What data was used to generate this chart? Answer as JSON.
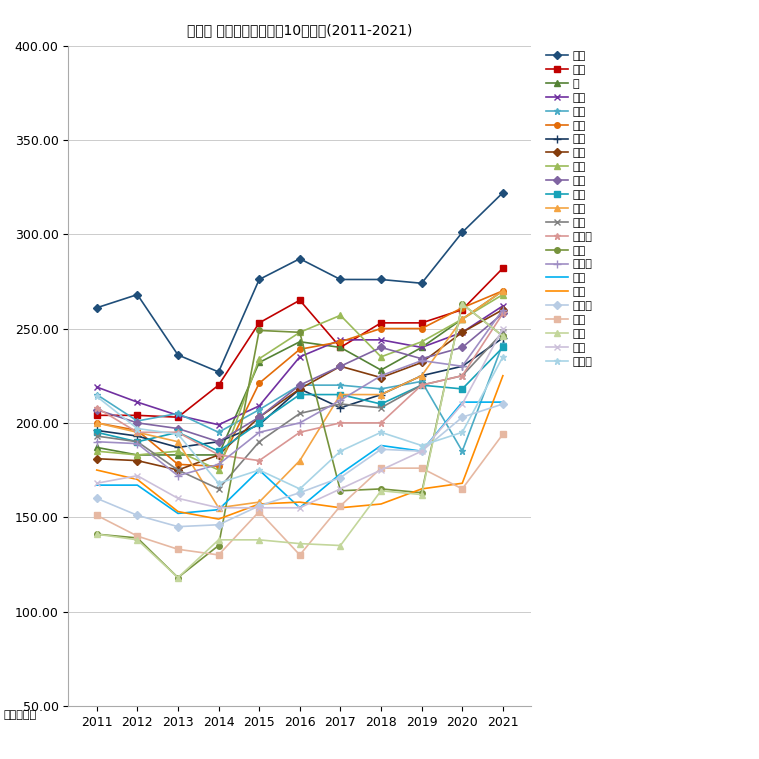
{
  "title": "墨田区 マンション坪単価10年変遷(2011-2021)",
  "xlabel_unit": "単位：万円",
  "years": [
    2011,
    2012,
    2013,
    2014,
    2015,
    2016,
    2017,
    2018,
    2019,
    2020,
    2021
  ],
  "ylim": [
    50.0,
    400.0
  ],
  "yticks": [
    50.0,
    100.0,
    150.0,
    200.0,
    250.0,
    300.0,
    350.0,
    400.0
  ],
  "series": [
    {
      "name": "太平",
      "color": "#1F4E79",
      "marker": "D",
      "values": [
        261,
        268,
        236,
        227,
        276,
        287,
        276,
        276,
        274,
        301,
        322
      ]
    },
    {
      "name": "立川",
      "color": "#C00000",
      "marker": "s",
      "values": [
        204,
        204,
        203,
        220,
        253,
        265,
        240,
        253,
        253,
        260,
        282
      ]
    },
    {
      "name": "緑",
      "color": "#548235",
      "marker": "^",
      "values": [
        187,
        183,
        183,
        183,
        232,
        243,
        240,
        228,
        240,
        255,
        270
      ]
    },
    {
      "name": "押上",
      "color": "#7030A0",
      "marker": "x",
      "values": [
        219,
        211,
        204,
        199,
        209,
        235,
        244,
        244,
        240,
        248,
        262
      ]
    },
    {
      "name": "石原",
      "color": "#4BACC6",
      "marker": "*",
      "values": [
        215,
        201,
        205,
        195,
        207,
        220,
        220,
        218,
        222,
        185,
        242
      ]
    },
    {
      "name": "本所",
      "color": "#E36C09",
      "marker": "o",
      "values": [
        200,
        196,
        178,
        177,
        221,
        239,
        243,
        250,
        250,
        261,
        270
      ]
    },
    {
      "name": "両国",
      "color": "#17375E",
      "marker": "+",
      "values": [
        196,
        193,
        187,
        190,
        199,
        218,
        208,
        215,
        225,
        230,
        245
      ]
    },
    {
      "name": "菊川",
      "color": "#843C0C",
      "marker": "D",
      "values": [
        181,
        180,
        175,
        183,
        203,
        218,
        230,
        224,
        232,
        248,
        260
      ]
    },
    {
      "name": "亀沢",
      "color": "#9BBB59",
      "marker": "^",
      "values": [
        185,
        183,
        185,
        175,
        234,
        248,
        257,
        235,
        243,
        255,
        268
      ]
    },
    {
      "name": "錦糸",
      "color": "#8064A2",
      "marker": "D",
      "values": [
        207,
        200,
        197,
        190,
        203,
        220,
        230,
        240,
        234,
        240,
        258
      ]
    },
    {
      "name": "京島",
      "color": "#17A2B8",
      "marker": "s",
      "values": [
        195,
        190,
        195,
        185,
        200,
        215,
        215,
        210,
        220,
        218,
        240
      ]
    },
    {
      "name": "業平",
      "color": "#F4A442",
      "marker": "^",
      "values": [
        200,
        195,
        190,
        155,
        158,
        180,
        215,
        215,
        225,
        255,
        270
      ]
    },
    {
      "name": "千歳",
      "color": "#7F7F7F",
      "marker": "x",
      "values": [
        193,
        190,
        175,
        165,
        190,
        205,
        210,
        208,
        220,
        225,
        248
      ]
    },
    {
      "name": "江東橋",
      "color": "#D99694",
      "marker": "*",
      "values": [
        208,
        195,
        195,
        183,
        180,
        195,
        200,
        200,
        220,
        225,
        258
      ]
    },
    {
      "name": "横川",
      "color": "#76933C",
      "marker": "o",
      "values": [
        141,
        139,
        118,
        135,
        249,
        248,
        164,
        165,
        163,
        263,
        246
      ]
    },
    {
      "name": "東駒形",
      "color": "#9F8EC4",
      "marker": "+",
      "values": [
        190,
        189,
        172,
        178,
        195,
        200,
        212,
        225,
        233,
        230,
        260
      ]
    },
    {
      "name": "文花",
      "color": "#00B0F0",
      "marker": "none",
      "values": [
        167,
        167,
        152,
        154,
        175,
        155,
        173,
        188,
        185,
        211,
        211
      ]
    },
    {
      "name": "向島",
      "color": "#FF8C00",
      "marker": "none",
      "values": [
        175,
        170,
        153,
        149,
        157,
        158,
        155,
        157,
        165,
        168,
        225
      ]
    },
    {
      "name": "東向島",
      "color": "#B8CCE4",
      "marker": "D",
      "values": [
        160,
        151,
        145,
        146,
        156,
        163,
        171,
        186,
        185,
        203,
        210
      ]
    },
    {
      "name": "墨田",
      "color": "#E6B8A2",
      "marker": "s",
      "values": [
        151,
        140,
        133,
        130,
        153,
        130,
        156,
        176,
        176,
        165,
        194
      ]
    },
    {
      "name": "立花",
      "color": "#C3D69B",
      "marker": "^",
      "values": [
        141,
        138,
        118,
        138,
        138,
        136,
        135,
        164,
        162,
        263,
        246
      ]
    },
    {
      "name": "八広",
      "color": "#CCC0DA",
      "marker": "x",
      "values": [
        168,
        172,
        160,
        155,
        155,
        155,
        165,
        175,
        185,
        210,
        250
      ]
    },
    {
      "name": "吾妻橋",
      "color": "#A8D4E6",
      "marker": "*",
      "values": [
        214,
        197,
        194,
        168,
        175,
        165,
        185,
        195,
        188,
        195,
        235
      ]
    }
  ]
}
